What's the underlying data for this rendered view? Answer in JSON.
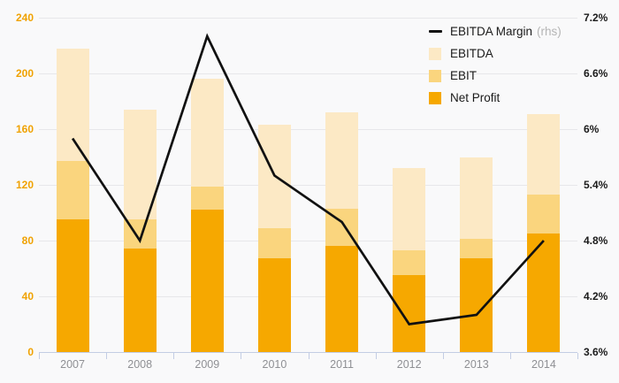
{
  "chart_data": {
    "type": "bar",
    "subtype": "overlapped-bars-with-line",
    "title": "",
    "categories": [
      "2007",
      "2008",
      "2009",
      "2010",
      "2011",
      "2012",
      "2013",
      "2014"
    ],
    "series": [
      {
        "name": "EBITDA Margin",
        "type": "line",
        "axis": "right",
        "color": "#111111",
        "values": [
          5.9,
          4.8,
          7.0,
          5.5,
          5.0,
          3.9,
          4.0,
          4.8
        ]
      },
      {
        "name": "EBITDA",
        "type": "bar",
        "axis": "left",
        "color": "#fce9c5",
        "values": [
          218,
          174,
          196,
          163,
          172,
          132,
          140,
          171
        ]
      },
      {
        "name": "EBIT",
        "type": "bar",
        "axis": "left",
        "color": "#fad57e",
        "values": [
          137,
          95,
          119,
          89,
          103,
          73,
          81,
          113
        ]
      },
      {
        "name": "Net Profit",
        "type": "bar",
        "axis": "left",
        "color": "#f6a800",
        "values": [
          95,
          74,
          102,
          67,
          76,
          55,
          67,
          85
        ]
      }
    ],
    "left_axis": {
      "min": 0,
      "max": 240,
      "step": 40,
      "tick_labels": [
        "0",
        "40",
        "80",
        "120",
        "160",
        "200",
        "240"
      ],
      "label_color": "#f0a202"
    },
    "right_axis": {
      "min": 3.6,
      "max": 7.2,
      "step": 0.6,
      "tick_labels": [
        "3.6%",
        "4.2%",
        "4.8%",
        "5.4%",
        "6%",
        "6.6%",
        "7.2%"
      ],
      "label_color": "#1b1b1b"
    },
    "legend": {
      "position": "top-right",
      "items": [
        {
          "label": "EBITDA Margin",
          "suffix": "(rhs)",
          "marker": "line",
          "color": "#111111"
        },
        {
          "label": "EBITDA",
          "suffix": "",
          "marker": "square",
          "color": "#fce9c5"
        },
        {
          "label": "EBIT",
          "suffix": "",
          "marker": "square",
          "color": "#fad57e"
        },
        {
          "label": "Net Profit",
          "suffix": "",
          "marker": "square",
          "color": "#f6a800"
        }
      ]
    },
    "grid": true
  }
}
